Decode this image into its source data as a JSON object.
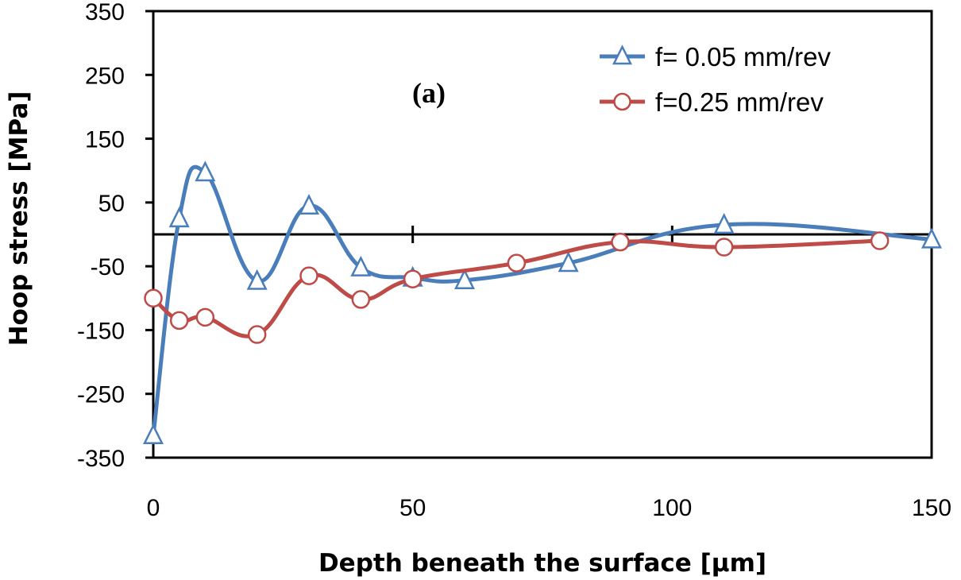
{
  "chart_data": {
    "type": "line",
    "panel_label": "(a)",
    "xlabel": "Depth beneath the surface  [µm]",
    "ylabel": "Hoop stress [MPa]",
    "xlim": [
      0,
      150
    ],
    "ylim": [
      -350,
      350
    ],
    "xticks": [
      0,
      50,
      100,
      150
    ],
    "yticks": [
      -350,
      -250,
      -150,
      -50,
      50,
      150,
      250,
      350
    ],
    "xtick_labels": [
      "0",
      "50",
      "100",
      "150"
    ],
    "ytick_labels": [
      "-350",
      "-250",
      "-150",
      "-50",
      "50",
      "150",
      "250",
      "350"
    ],
    "grid": false,
    "legend_position": "top-right",
    "series": [
      {
        "name": "f= 0.05 mm/rev",
        "color": "#4a7ebb",
        "marker": "triangle",
        "x": [
          0,
          5,
          10,
          20,
          30,
          40,
          50,
          60,
          80,
          110,
          150
        ],
        "y": [
          -315,
          25,
          97,
          -73,
          45,
          -52,
          -68,
          -72,
          -45,
          15,
          -8
        ]
      },
      {
        "name": "f=0.25 mm/rev",
        "color": "#be4b48",
        "marker": "circle",
        "x": [
          0,
          5,
          10,
          20,
          30,
          40,
          50,
          70,
          90,
          110,
          140
        ],
        "y": [
          -100,
          -135,
          -130,
          -157,
          -65,
          -102,
          -70,
          -45,
          -12,
          -20,
          -10
        ]
      }
    ]
  }
}
